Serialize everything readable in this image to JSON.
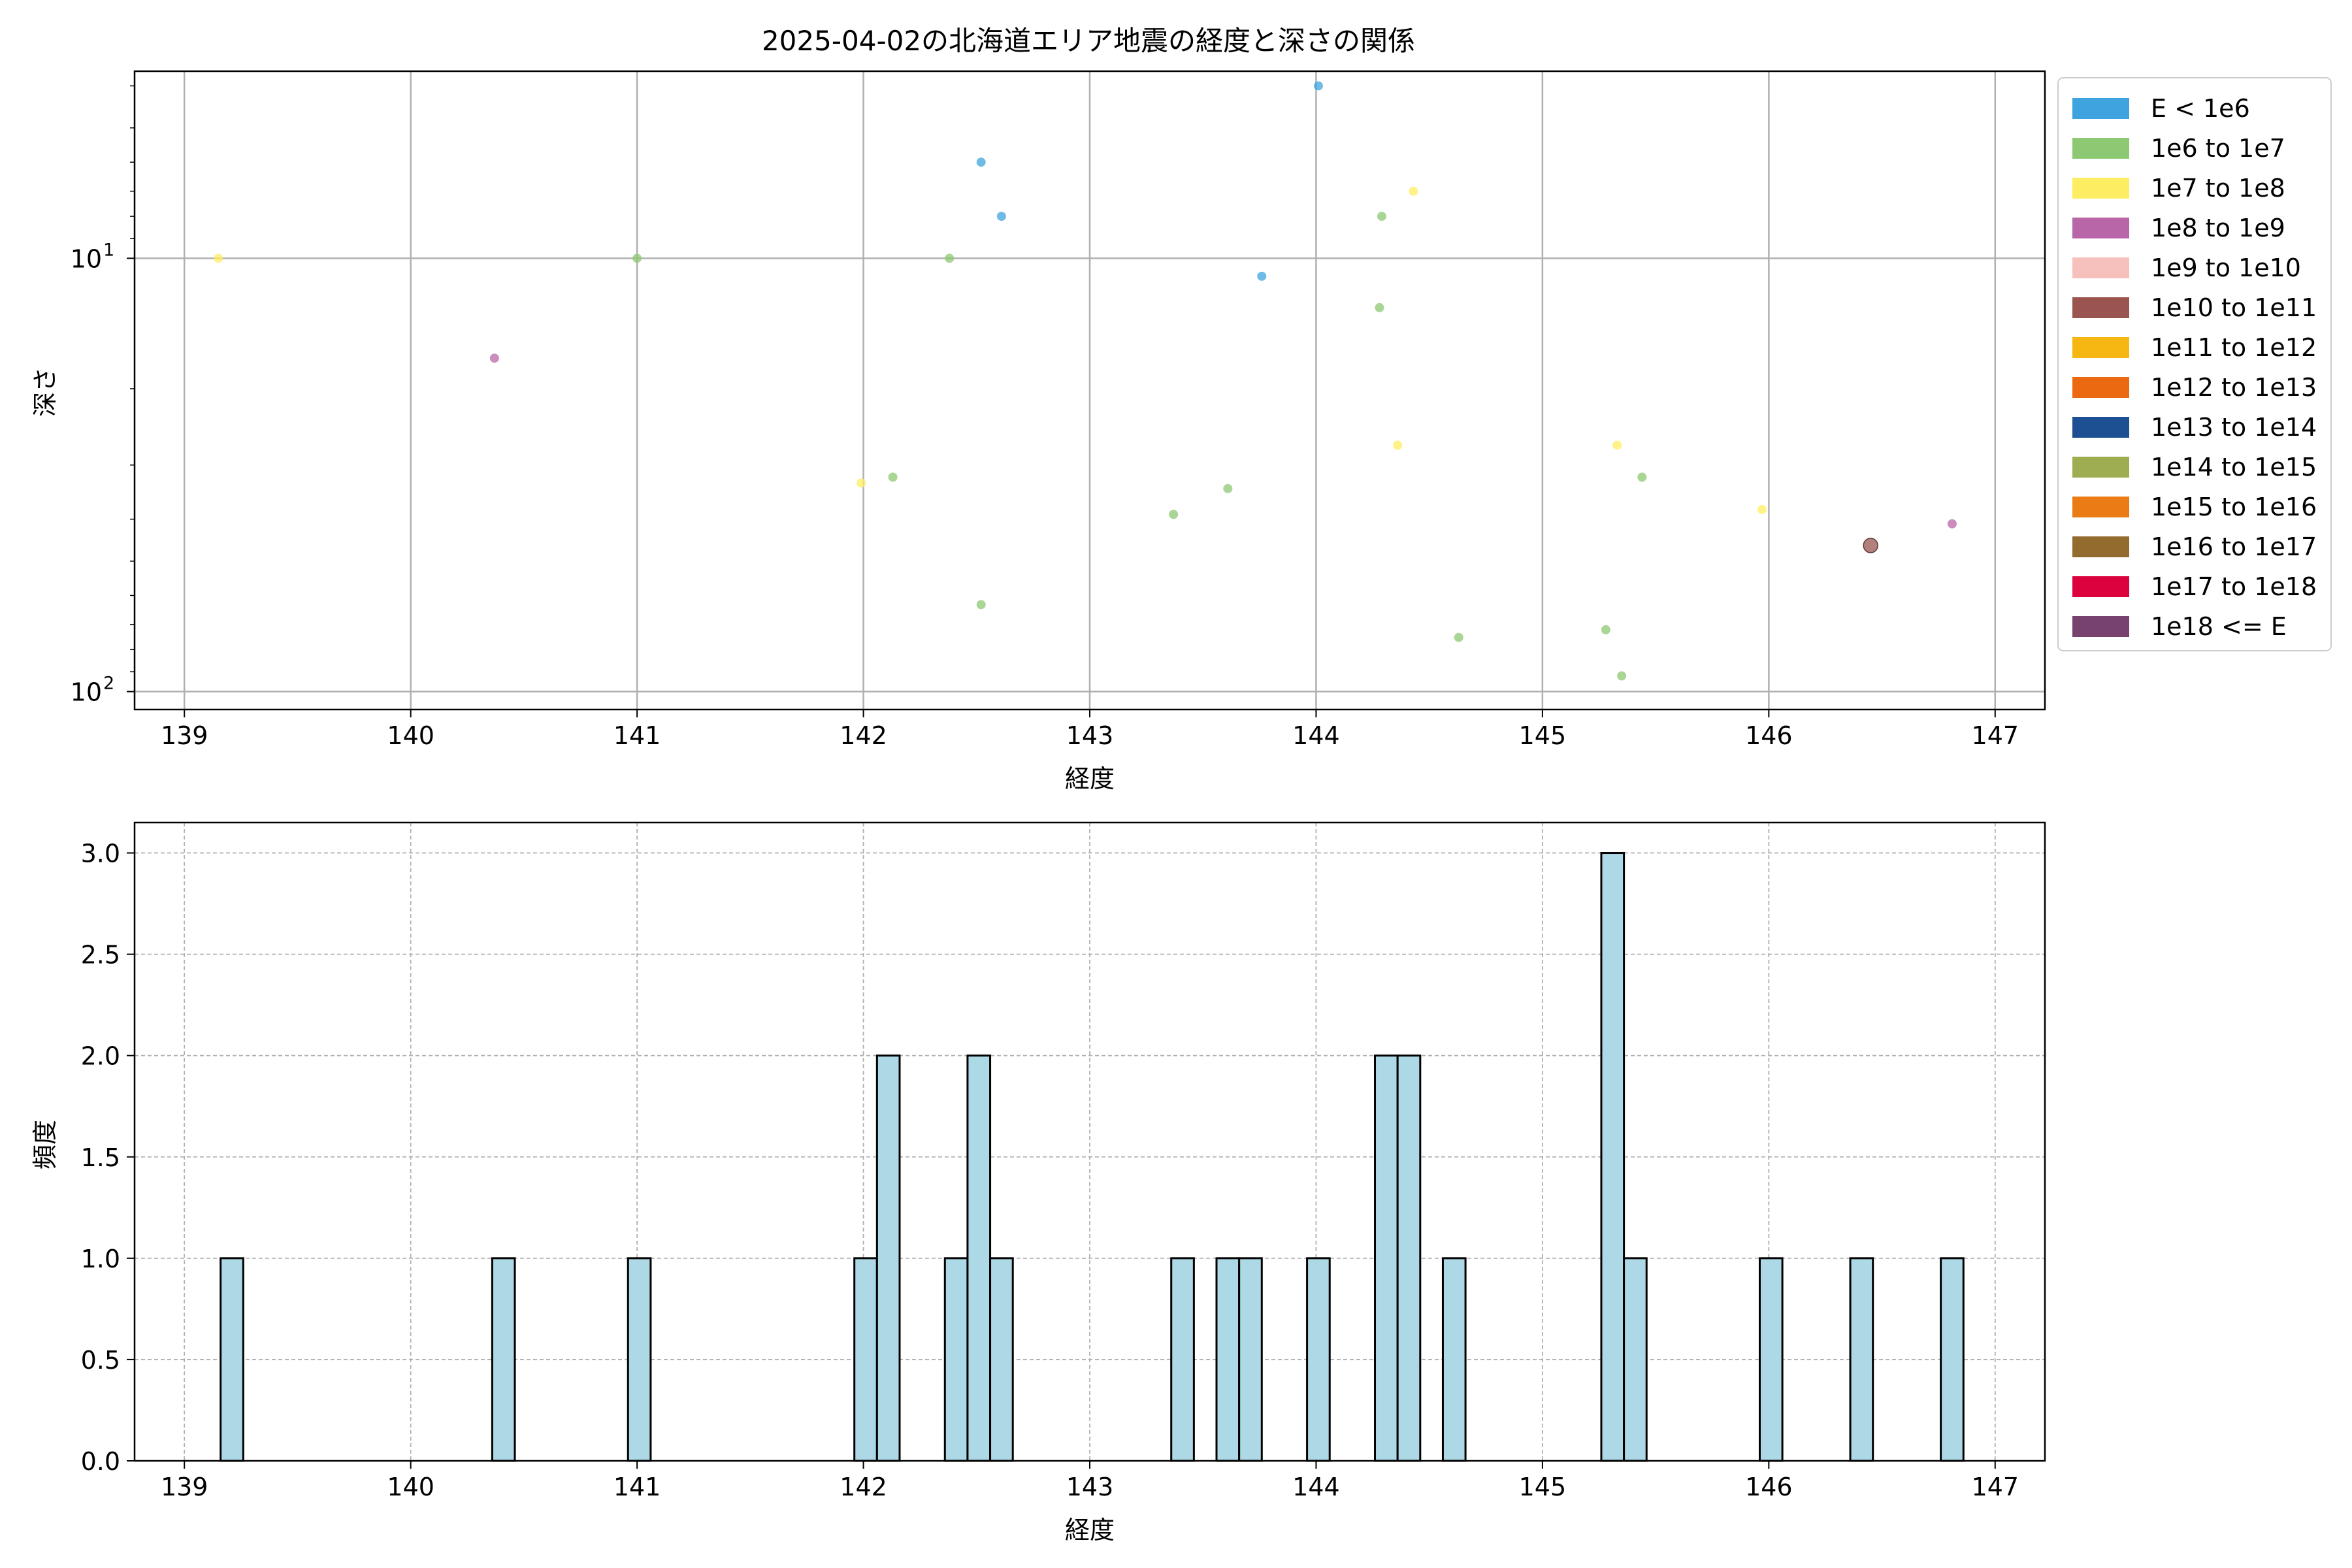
{
  "chart_data": [
    {
      "type": "scatter",
      "title": "2025-04-02の北海道エリア地震の経度と深さの関係",
      "xlabel": "経度",
      "ylabel": "深さ",
      "xlim": [
        138.78,
        147.22
      ],
      "ylim": [
        110,
        3.7
      ],
      "y_scale": "log",
      "y_inverted": true,
      "xticks": [
        139,
        140,
        141,
        142,
        143,
        144,
        145,
        146,
        147
      ],
      "yticks": [
        {
          "value": 10,
          "base": "10",
          "exp": "1"
        },
        {
          "value": 100,
          "base": "10",
          "exp": "2"
        }
      ],
      "grid": true,
      "legend_position": "outside-right",
      "legend": [
        {
          "label": "E < 1e6",
          "color": "#3fa3df"
        },
        {
          "label": "1e6 to 1e7",
          "color": "#8dc872"
        },
        {
          "label": "1e7 to 1e8",
          "color": "#fded62"
        },
        {
          "label": "1e8 to 1e9",
          "color": "#b966a8"
        },
        {
          "label": "1e9 to 1e10",
          "color": "#f6c1bc"
        },
        {
          "label": "1e10 to 1e11",
          "color": "#9a5550"
        },
        {
          "label": "1e11 to 1e12",
          "color": "#f7b713"
        },
        {
          "label": "1e12 to 1e13",
          "color": "#eb6a11"
        },
        {
          "label": "1e13 to 1e14",
          "color": "#1d4f93"
        },
        {
          "label": "1e14 to 1e15",
          "color": "#9ead52"
        },
        {
          "label": "1e15 to 1e16",
          "color": "#eb7b14"
        },
        {
          "label": "1e16 to 1e17",
          "color": "#946b2e"
        },
        {
          "label": "1e17 to 1e18",
          "color": "#dc023e"
        },
        {
          "label": "1e18 <= E",
          "color": "#77426d"
        }
      ],
      "points": [
        {
          "x": 139.15,
          "y": 10,
          "cls": 2
        },
        {
          "x": 140.37,
          "y": 17,
          "cls": 3
        },
        {
          "x": 141.0,
          "y": 10,
          "cls": 1
        },
        {
          "x": 141.99,
          "y": 33,
          "cls": 2
        },
        {
          "x": 142.13,
          "y": 32,
          "cls": 1
        },
        {
          "x": 142.38,
          "y": 10,
          "cls": 1
        },
        {
          "x": 142.52,
          "y": 6,
          "cls": 0
        },
        {
          "x": 142.52,
          "y": 63,
          "cls": 1
        },
        {
          "x": 142.61,
          "y": 8,
          "cls": 0
        },
        {
          "x": 143.37,
          "y": 39,
          "cls": 1
        },
        {
          "x": 143.61,
          "y": 34,
          "cls": 1
        },
        {
          "x": 143.76,
          "y": 11,
          "cls": 0
        },
        {
          "x": 144.01,
          "y": 4,
          "cls": 0
        },
        {
          "x": 144.28,
          "y": 13,
          "cls": 1
        },
        {
          "x": 144.29,
          "y": 8,
          "cls": 1
        },
        {
          "x": 144.36,
          "y": 27,
          "cls": 2
        },
        {
          "x": 144.43,
          "y": 7,
          "cls": 2
        },
        {
          "x": 144.63,
          "y": 75,
          "cls": 1
        },
        {
          "x": 145.28,
          "y": 72,
          "cls": 1
        },
        {
          "x": 145.33,
          "y": 27,
          "cls": 2
        },
        {
          "x": 145.35,
          "y": 92,
          "cls": 1
        },
        {
          "x": 145.44,
          "y": 32,
          "cls": 1
        },
        {
          "x": 145.97,
          "y": 38,
          "cls": 2
        },
        {
          "x": 146.45,
          "y": 46,
          "cls": 5,
          "big": true
        },
        {
          "x": 146.81,
          "y": 41,
          "cls": 3
        }
      ]
    },
    {
      "type": "bar",
      "xlabel": "経度",
      "ylabel": "頻度",
      "xlim": [
        138.78,
        147.22
      ],
      "ylim": [
        0,
        3.15
      ],
      "xticks": [
        139,
        140,
        141,
        142,
        143,
        144,
        145,
        146,
        147
      ],
      "yticks": [
        "0.0",
        "0.5",
        "1.0",
        "1.5",
        "2.0",
        "2.5",
        "3.0"
      ],
      "grid": "dashed",
      "bar_color": "#add8e6",
      "bin_width": 0.1,
      "bins": [
        {
          "x0": 139.16,
          "count": 1
        },
        {
          "x0": 140.36,
          "count": 1
        },
        {
          "x0": 140.96,
          "count": 1
        },
        {
          "x0": 141.96,
          "count": 1
        },
        {
          "x0": 142.06,
          "count": 2
        },
        {
          "x0": 142.36,
          "count": 1
        },
        {
          "x0": 142.46,
          "count": 2
        },
        {
          "x0": 142.56,
          "count": 1
        },
        {
          "x0": 143.36,
          "count": 1
        },
        {
          "x0": 143.56,
          "count": 1
        },
        {
          "x0": 143.66,
          "count": 1
        },
        {
          "x0": 143.96,
          "count": 1
        },
        {
          "x0": 144.26,
          "count": 2
        },
        {
          "x0": 144.36,
          "count": 2
        },
        {
          "x0": 144.56,
          "count": 1
        },
        {
          "x0": 145.26,
          "count": 3
        },
        {
          "x0": 145.36,
          "count": 1
        },
        {
          "x0": 145.96,
          "count": 1
        },
        {
          "x0": 146.36,
          "count": 1
        },
        {
          "x0": 146.76,
          "count": 1
        }
      ]
    }
  ]
}
